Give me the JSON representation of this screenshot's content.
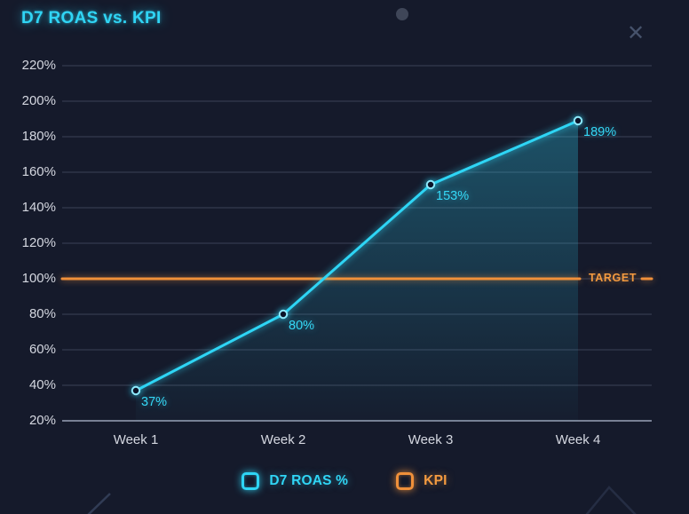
{
  "icons": {
    "close_glyph": "✕"
  },
  "chart_data": {
    "type": "line",
    "title": "D7 ROAS vs. KPI",
    "categories": [
      "Week 1",
      "Week 2",
      "Week 3",
      "Week 4"
    ],
    "series": [
      {
        "name": "D7 ROAS %",
        "type": "line",
        "values": [
          37,
          80,
          153,
          189
        ],
        "point_labels": [
          "37%",
          "80%",
          "153%",
          "189%"
        ],
        "color": "#2ed5f5",
        "area_fill": true
      },
      {
        "name": "KPI",
        "type": "horizontal-target-line",
        "value": 100,
        "label": "TARGET",
        "color": "#f0903a"
      }
    ],
    "ylim": [
      20,
      220
    ],
    "ytick_values": [
      220,
      200,
      180,
      160,
      140,
      120,
      100,
      80,
      60,
      40,
      20
    ],
    "ytick_labels": [
      "220%",
      "200%",
      "180%",
      "160%",
      "140%",
      "120%",
      "100%",
      "80%",
      "60%",
      "40%",
      "20%"
    ],
    "grid": true,
    "legend_position": "bottom"
  },
  "colors": {
    "background": "#151a2b",
    "accent_cyan": "#2ed5f5",
    "accent_orange": "#f0903a",
    "tick_text": "#d4d7e0",
    "grid": "#7a849d"
  }
}
